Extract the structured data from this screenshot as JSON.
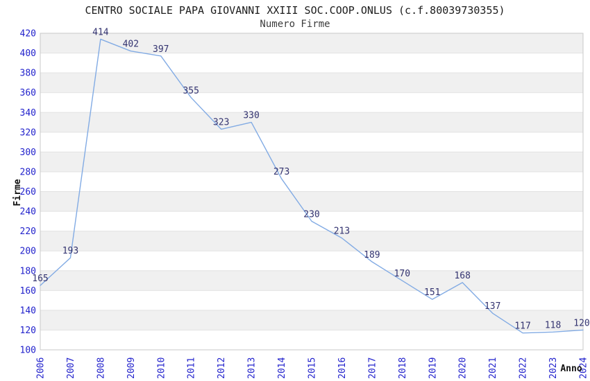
{
  "title": "CENTRO SOCIALE PAPA GIOVANNI XXIII SOC.COOP.ONLUS (c.f.80039730355)",
  "subtitle": "Numero Firme",
  "chart_data": {
    "type": "line",
    "x": [
      2006,
      2007,
      2008,
      2009,
      2010,
      2011,
      2012,
      2013,
      2014,
      2015,
      2016,
      2017,
      2018,
      2019,
      2020,
      2021,
      2022,
      2023,
      2024
    ],
    "series": [
      {
        "name": "Numero Firme",
        "values": [
          165,
          193,
          414,
          402,
          397,
          355,
          323,
          330,
          273,
          230,
          213,
          189,
          170,
          151,
          168,
          137,
          117,
          118,
          120
        ]
      }
    ],
    "title": "CENTRO SOCIALE PAPA GIOVANNI XXIII SOC.COOP.ONLUS (c.f.80039730355)",
    "subtitle": "Numero Firme",
    "xlabel": "Anno",
    "ylabel": "Firme",
    "ylim": [
      100,
      420
    ],
    "ytick_step": 20,
    "grid": "horizontal",
    "legend": "none",
    "colors": {
      "line": "#82abe4",
      "tick_label": "#2222cc",
      "point_label": "#333370",
      "band_gray": "#f0f0f0",
      "gridline": "#e2e2e2",
      "border": "#c9c9c9",
      "title_text": "#1c1c1c"
    }
  }
}
